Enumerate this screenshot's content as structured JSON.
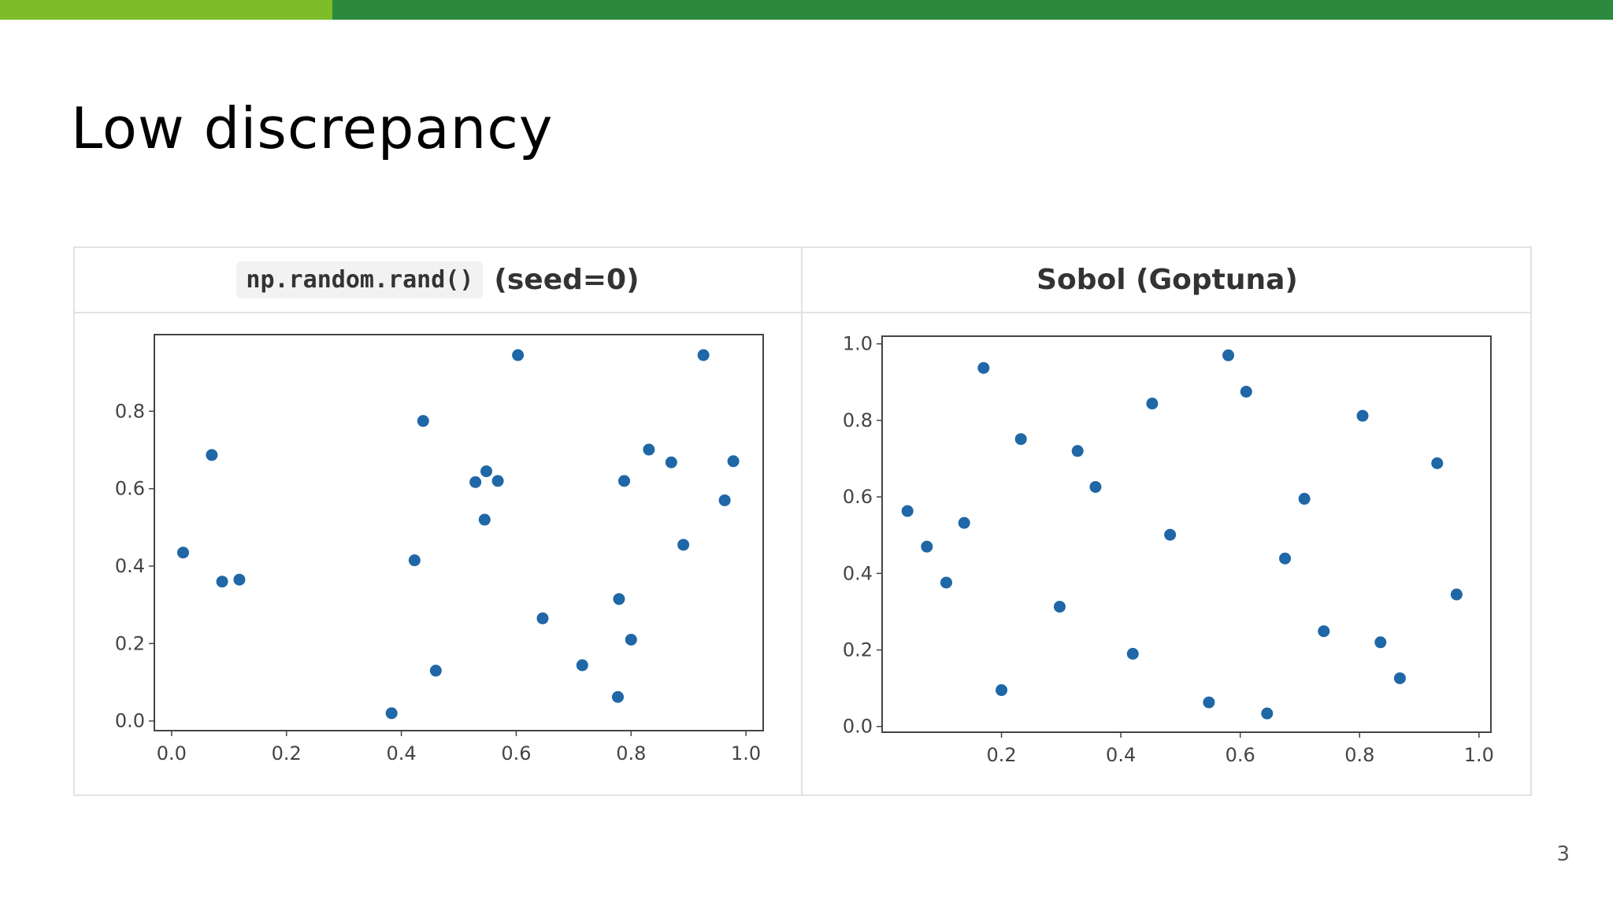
{
  "slide": {
    "title": "Low discrepancy",
    "page_number": "3",
    "colors": {
      "bar_light": "#7dbd2a",
      "bar_dark": "#2b8a3e",
      "marker": "#1f67a6"
    }
  },
  "table": {
    "left_header": {
      "code": "np.random.rand()",
      "text": "(seed=0)"
    },
    "right_header": {
      "text": "Sobol (Goptuna)"
    }
  },
  "chart_data": [
    {
      "type": "scatter",
      "title": "",
      "xlabel": "",
      "ylabel": "",
      "xlim": [
        -0.03,
        1.03
      ],
      "ylim": [
        -0.025,
        0.998
      ],
      "xticks": [
        0.0,
        0.2,
        0.4,
        0.6,
        0.8,
        1.0
      ],
      "xtick_labels": [
        "0.0",
        "0.2",
        "0.4",
        "0.6",
        "0.8",
        "1.0"
      ],
      "yticks": [
        0.0,
        0.2,
        0.4,
        0.6,
        0.8
      ],
      "ytick_labels": [
        "0.0",
        "0.2",
        "0.4",
        "0.6",
        "0.8"
      ],
      "grid": false,
      "points": [
        [
          0.02,
          0.435
        ],
        [
          0.07,
          0.687
        ],
        [
          0.088,
          0.36
        ],
        [
          0.118,
          0.365
        ],
        [
          0.383,
          0.02
        ],
        [
          0.423,
          0.415
        ],
        [
          0.438,
          0.775
        ],
        [
          0.46,
          0.13
        ],
        [
          0.529,
          0.617
        ],
        [
          0.545,
          0.52
        ],
        [
          0.548,
          0.645
        ],
        [
          0.568,
          0.62
        ],
        [
          0.603,
          0.945
        ],
        [
          0.646,
          0.265
        ],
        [
          0.715,
          0.144
        ],
        [
          0.777,
          0.062
        ],
        [
          0.779,
          0.315
        ],
        [
          0.788,
          0.62
        ],
        [
          0.8,
          0.21
        ],
        [
          0.831,
          0.701
        ],
        [
          0.87,
          0.668
        ],
        [
          0.891,
          0.455
        ],
        [
          0.926,
          0.945
        ],
        [
          0.963,
          0.57
        ],
        [
          0.978,
          0.671
        ]
      ]
    },
    {
      "type": "scatter",
      "title": "",
      "xlabel": "",
      "ylabel": "",
      "xlim": [
        0.0,
        1.02
      ],
      "ylim": [
        -0.015,
        1.02
      ],
      "xticks": [
        0.2,
        0.4,
        0.6,
        0.8,
        1.0
      ],
      "xtick_labels": [
        "0.2",
        "0.4",
        "0.6",
        "0.8",
        "1.0"
      ],
      "yticks": [
        0.0,
        0.2,
        0.4,
        0.6,
        0.8,
        1.0
      ],
      "ytick_labels": [
        "0.0",
        "0.2",
        "0.4",
        "0.6",
        "0.8",
        "1.0"
      ],
      "grid": false,
      "points": [
        [
          0.0425,
          0.563
        ],
        [
          0.075,
          0.47
        ],
        [
          0.1075,
          0.376
        ],
        [
          0.1375,
          0.532
        ],
        [
          0.17,
          0.937
        ],
        [
          0.2,
          0.095
        ],
        [
          0.2325,
          0.751
        ],
        [
          0.2975,
          0.313
        ],
        [
          0.3275,
          0.72
        ],
        [
          0.3575,
          0.626
        ],
        [
          0.42,
          0.19
        ],
        [
          0.4525,
          0.844
        ],
        [
          0.4825,
          0.501
        ],
        [
          0.5475,
          0.063
        ],
        [
          0.58,
          0.97
        ],
        [
          0.61,
          0.875
        ],
        [
          0.645,
          0.034
        ],
        [
          0.675,
          0.439
        ],
        [
          0.7075,
          0.595
        ],
        [
          0.74,
          0.249
        ],
        [
          0.805,
          0.812
        ],
        [
          0.835,
          0.22
        ],
        [
          0.8675,
          0.126
        ],
        [
          0.93,
          0.688
        ],
        [
          0.9625,
          0.345
        ]
      ]
    }
  ]
}
